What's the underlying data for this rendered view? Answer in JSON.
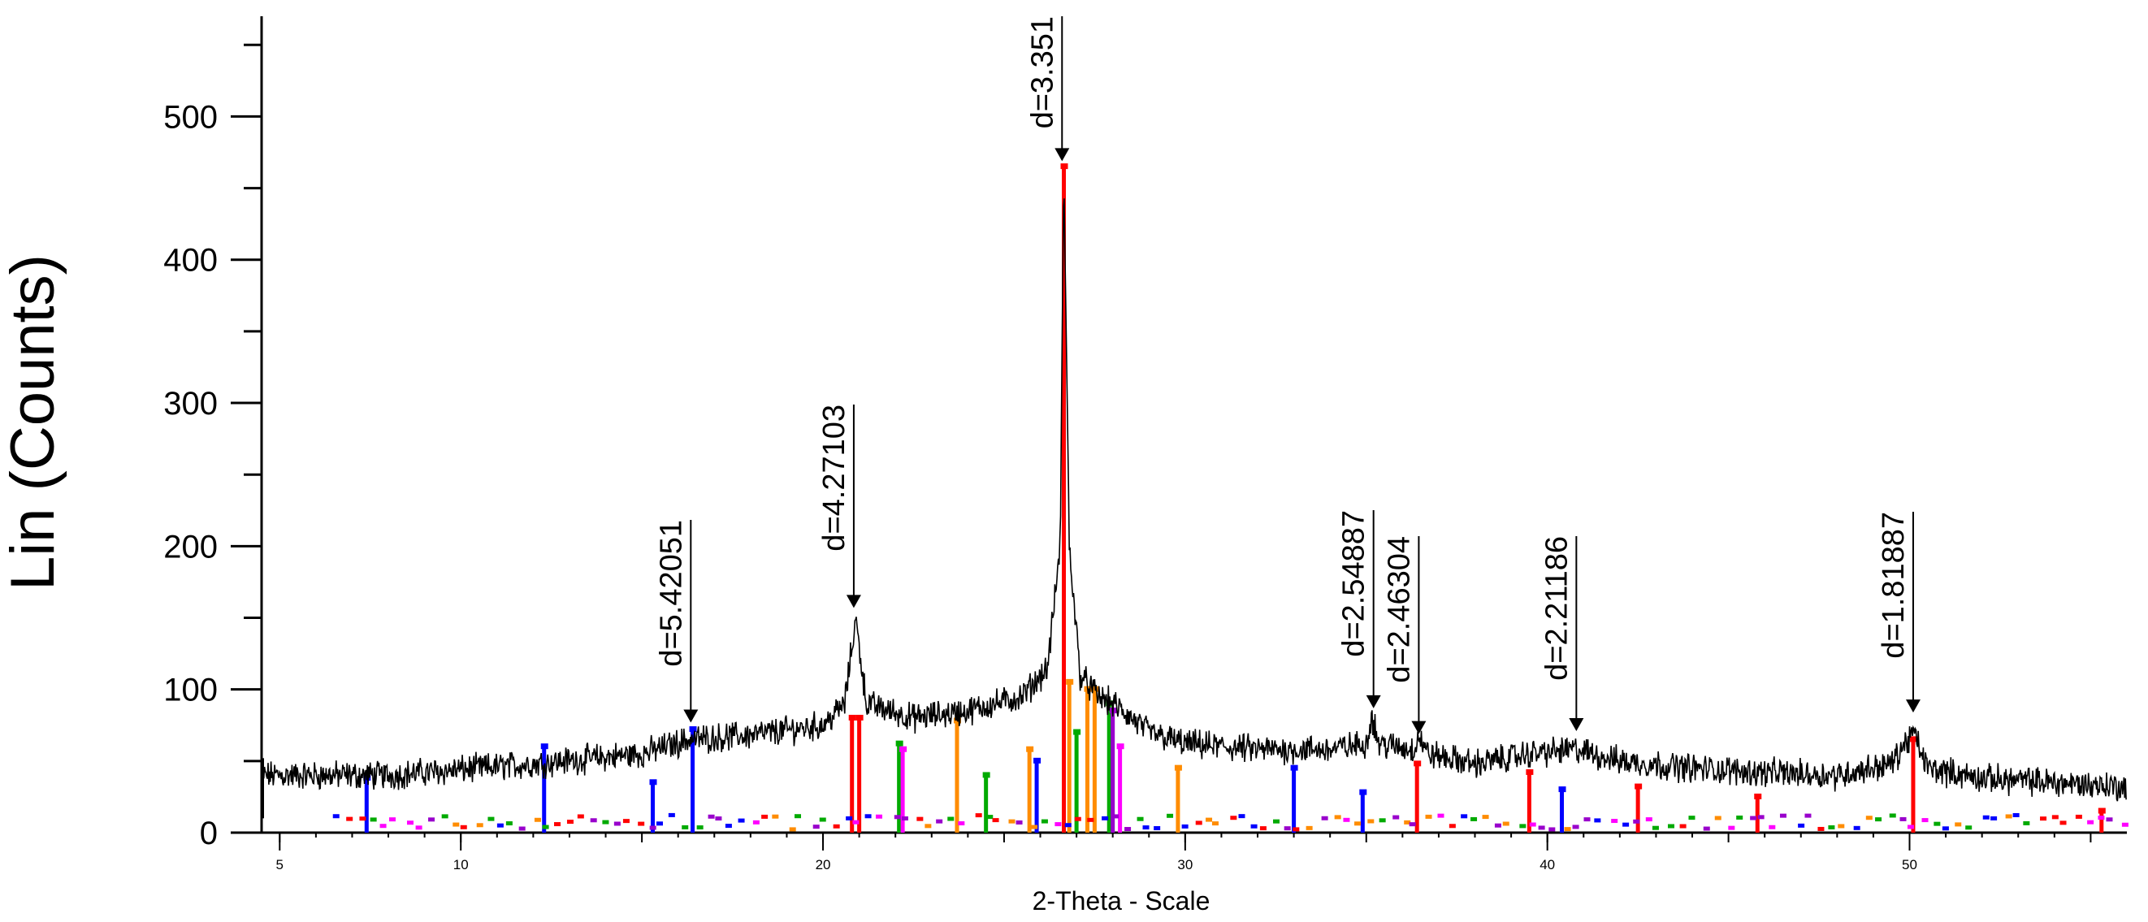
{
  "chart_data": {
    "type": "line",
    "xlabel": "2-Theta - Scale",
    "ylabel": "Lin (Counts)",
    "xlim": [
      4.5,
      56
    ],
    "ylim": [
      0,
      570
    ],
    "yticks": [
      0,
      100,
      200,
      300,
      400,
      500
    ],
    "xticks": [
      5,
      10,
      20,
      30,
      40,
      50
    ],
    "grid": false,
    "legend": "none",
    "colors": {
      "trace": "#000000",
      "axis": "#000000",
      "phases": [
        "#0000ff",
        "#ff0000",
        "#ff8c00",
        "#00aa00",
        "#ff00ff",
        "#9900cc"
      ]
    },
    "pattern_control_points": [
      [
        4.5,
        40
      ],
      [
        8,
        40
      ],
      [
        12,
        48
      ],
      [
        15,
        55
      ],
      [
        16.3,
        65
      ],
      [
        18,
        68
      ],
      [
        20,
        75
      ],
      [
        20.6,
        90
      ],
      [
        20.9,
        150
      ],
      [
        21.2,
        90
      ],
      [
        22.5,
        80
      ],
      [
        24,
        85
      ],
      [
        25.5,
        95
      ],
      [
        26.2,
        115
      ],
      [
        26.55,
        200
      ],
      [
        26.65,
        465
      ],
      [
        26.8,
        200
      ],
      [
        27.1,
        110
      ],
      [
        27.6,
        95
      ],
      [
        28,
        90
      ],
      [
        29,
        70
      ],
      [
        30,
        62
      ],
      [
        32,
        58
      ],
      [
        34,
        58
      ],
      [
        35,
        62
      ],
      [
        35.15,
        82
      ],
      [
        35.35,
        62
      ],
      [
        36.3,
        58
      ],
      [
        36.45,
        68
      ],
      [
        36.7,
        55
      ],
      [
        38,
        48
      ],
      [
        39.5,
        55
      ],
      [
        40.8,
        58
      ],
      [
        42,
        50
      ],
      [
        44,
        45
      ],
      [
        46,
        42
      ],
      [
        48,
        40
      ],
      [
        49.5,
        48
      ],
      [
        50.1,
        70
      ],
      [
        50.5,
        45
      ],
      [
        52,
        38
      ],
      [
        54,
        35
      ],
      [
        56,
        32
      ]
    ],
    "peaks": [
      {
        "two_theta": 16.35,
        "counts": 78,
        "label": "d=5.42051"
      },
      {
        "two_theta": 20.85,
        "counts": 158,
        "label": "d=4.27103"
      },
      {
        "two_theta": 26.6,
        "counts": 470,
        "label": "d=3.351"
      },
      {
        "two_theta": 35.2,
        "counts": 88,
        "label": "d=2.54887"
      },
      {
        "two_theta": 36.45,
        "counts": 70,
        "label": "d=2.46304"
      },
      {
        "two_theta": 40.8,
        "counts": 72,
        "label": "d=2.21186"
      },
      {
        "two_theta": 50.1,
        "counts": 85,
        "label": "d=1.81887"
      }
    ],
    "reference_sticks": [
      {
        "x": 7.4,
        "y": 38,
        "color": "#0000ff"
      },
      {
        "x": 12.3,
        "y": 60,
        "color": "#0000ff"
      },
      {
        "x": 15.3,
        "y": 35,
        "color": "#0000ff"
      },
      {
        "x": 16.4,
        "y": 72,
        "color": "#0000ff"
      },
      {
        "x": 20.8,
        "y": 80,
        "color": "#ff0000"
      },
      {
        "x": 21.0,
        "y": 80,
        "color": "#ff0000"
      },
      {
        "x": 22.1,
        "y": 62,
        "color": "#00aa00"
      },
      {
        "x": 22.2,
        "y": 58,
        "color": "#ff00ff"
      },
      {
        "x": 23.7,
        "y": 78,
        "color": "#ff8c00"
      },
      {
        "x": 24.5,
        "y": 40,
        "color": "#00aa00"
      },
      {
        "x": 25.7,
        "y": 58,
        "color": "#ff8c00"
      },
      {
        "x": 25.9,
        "y": 50,
        "color": "#0000ff"
      },
      {
        "x": 26.65,
        "y": 465,
        "color": "#ff0000"
      },
      {
        "x": 26.8,
        "y": 105,
        "color": "#ff8c00"
      },
      {
        "x": 27.0,
        "y": 70,
        "color": "#00aa00"
      },
      {
        "x": 27.3,
        "y": 100,
        "color": "#ff8c00"
      },
      {
        "x": 27.5,
        "y": 100,
        "color": "#ff8c00"
      },
      {
        "x": 27.9,
        "y": 90,
        "color": "#00aa00"
      },
      {
        "x": 28.0,
        "y": 85,
        "color": "#9900cc"
      },
      {
        "x": 28.2,
        "y": 60,
        "color": "#ff00ff"
      },
      {
        "x": 29.8,
        "y": 45,
        "color": "#ff8c00"
      },
      {
        "x": 33.0,
        "y": 45,
        "color": "#0000ff"
      },
      {
        "x": 34.9,
        "y": 28,
        "color": "#0000ff"
      },
      {
        "x": 36.4,
        "y": 48,
        "color": "#ff0000"
      },
      {
        "x": 39.5,
        "y": 42,
        "color": "#ff0000"
      },
      {
        "x": 40.4,
        "y": 30,
        "color": "#0000ff"
      },
      {
        "x": 42.5,
        "y": 32,
        "color": "#ff0000"
      },
      {
        "x": 45.8,
        "y": 25,
        "color": "#ff0000"
      },
      {
        "x": 50.1,
        "y": 65,
        "color": "#ff0000"
      },
      {
        "x": 55.3,
        "y": 15,
        "color": "#ff0000"
      }
    ]
  }
}
